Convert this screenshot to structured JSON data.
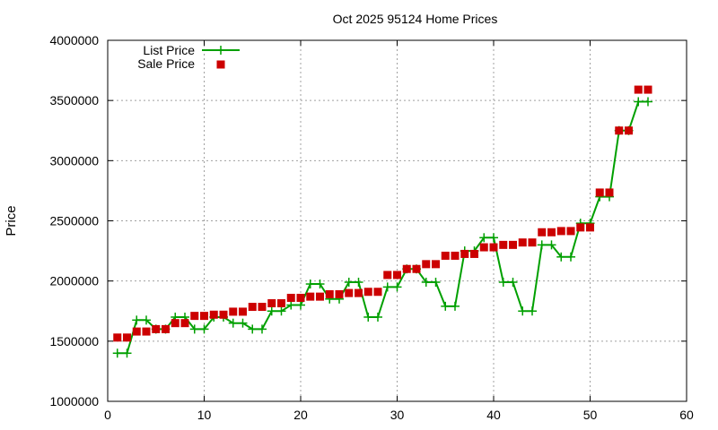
{
  "chart_data": {
    "type": "line",
    "title": "Oct 2025 95124 Home Prices",
    "xlabel": "",
    "ylabel": "Price",
    "xlim": [
      0,
      60
    ],
    "ylim": [
      1000000,
      4000000
    ],
    "x_ticks": [
      0,
      10,
      20,
      30,
      40,
      50,
      60
    ],
    "y_ticks": [
      1000000,
      1500000,
      2000000,
      2500000,
      3000000,
      3500000,
      4000000
    ],
    "grid": true,
    "legend_position": "top-left",
    "series": [
      {
        "name": "List Price",
        "style": "line-with-plus-markers",
        "color": "#00a000",
        "points": [
          [
            1,
            1400000
          ],
          [
            2,
            1400000
          ],
          [
            3,
            1675000
          ],
          [
            4,
            1675000
          ],
          [
            5,
            1600000
          ],
          [
            6,
            1600000
          ],
          [
            7,
            1700000
          ],
          [
            8,
            1700000
          ],
          [
            9,
            1600000
          ],
          [
            10,
            1600000
          ],
          [
            11,
            1700000
          ],
          [
            12,
            1700000
          ],
          [
            13,
            1650000
          ],
          [
            14,
            1650000
          ],
          [
            15,
            1600000
          ],
          [
            16,
            1600000
          ],
          [
            17,
            1750000
          ],
          [
            18,
            1750000
          ],
          [
            19,
            1800000
          ],
          [
            20,
            1800000
          ],
          [
            21,
            1975000
          ],
          [
            22,
            1975000
          ],
          [
            23,
            1850000
          ],
          [
            24,
            1850000
          ],
          [
            25,
            1990000
          ],
          [
            26,
            1990000
          ],
          [
            27,
            1700000
          ],
          [
            28,
            1700000
          ],
          [
            29,
            1950000
          ],
          [
            30,
            1950000
          ],
          [
            31,
            2100000
          ],
          [
            32,
            2100000
          ],
          [
            33,
            1990000
          ],
          [
            34,
            1990000
          ],
          [
            35,
            1790000
          ],
          [
            36,
            1790000
          ],
          [
            37,
            2250000
          ],
          [
            38,
            2250000
          ],
          [
            39,
            2360000
          ],
          [
            40,
            2360000
          ],
          [
            41,
            1990000
          ],
          [
            42,
            1990000
          ],
          [
            43,
            1750000
          ],
          [
            44,
            1750000
          ],
          [
            45,
            2300000
          ],
          [
            46,
            2300000
          ],
          [
            47,
            2200000
          ],
          [
            48,
            2200000
          ],
          [
            49,
            2480000
          ],
          [
            50,
            2480000
          ],
          [
            51,
            2700000
          ],
          [
            52,
            2700000
          ],
          [
            53,
            3250000
          ],
          [
            54,
            3250000
          ],
          [
            55,
            3490000
          ],
          [
            56,
            3490000
          ]
        ]
      },
      {
        "name": "Sale Price",
        "style": "square-markers",
        "color": "#cc0000",
        "points": [
          [
            1,
            1530000
          ],
          [
            2,
            1530000
          ],
          [
            3,
            1580000
          ],
          [
            4,
            1580000
          ],
          [
            5,
            1600000
          ],
          [
            6,
            1600000
          ],
          [
            7,
            1650000
          ],
          [
            8,
            1650000
          ],
          [
            9,
            1710000
          ],
          [
            10,
            1710000
          ],
          [
            11,
            1720000
          ],
          [
            12,
            1720000
          ],
          [
            13,
            1745000
          ],
          [
            14,
            1745000
          ],
          [
            15,
            1785000
          ],
          [
            16,
            1785000
          ],
          [
            17,
            1815000
          ],
          [
            18,
            1815000
          ],
          [
            19,
            1860000
          ],
          [
            20,
            1860000
          ],
          [
            21,
            1870000
          ],
          [
            22,
            1870000
          ],
          [
            23,
            1890000
          ],
          [
            24,
            1890000
          ],
          [
            25,
            1900000
          ],
          [
            26,
            1900000
          ],
          [
            27,
            1910000
          ],
          [
            28,
            1910000
          ],
          [
            29,
            2050000
          ],
          [
            30,
            2050000
          ],
          [
            31,
            2100000
          ],
          [
            32,
            2100000
          ],
          [
            33,
            2140000
          ],
          [
            34,
            2140000
          ],
          [
            35,
            2210000
          ],
          [
            36,
            2210000
          ],
          [
            37,
            2225000
          ],
          [
            38,
            2225000
          ],
          [
            39,
            2280000
          ],
          [
            40,
            2280000
          ],
          [
            41,
            2300000
          ],
          [
            42,
            2300000
          ],
          [
            43,
            2320000
          ],
          [
            44,
            2320000
          ],
          [
            45,
            2405000
          ],
          [
            46,
            2405000
          ],
          [
            47,
            2415000
          ],
          [
            48,
            2415000
          ],
          [
            49,
            2445000
          ],
          [
            50,
            2445000
          ],
          [
            51,
            2735000
          ],
          [
            52,
            2735000
          ],
          [
            53,
            3250000
          ],
          [
            54,
            3250000
          ],
          [
            55,
            3590000
          ],
          [
            56,
            3590000
          ]
        ]
      }
    ]
  }
}
